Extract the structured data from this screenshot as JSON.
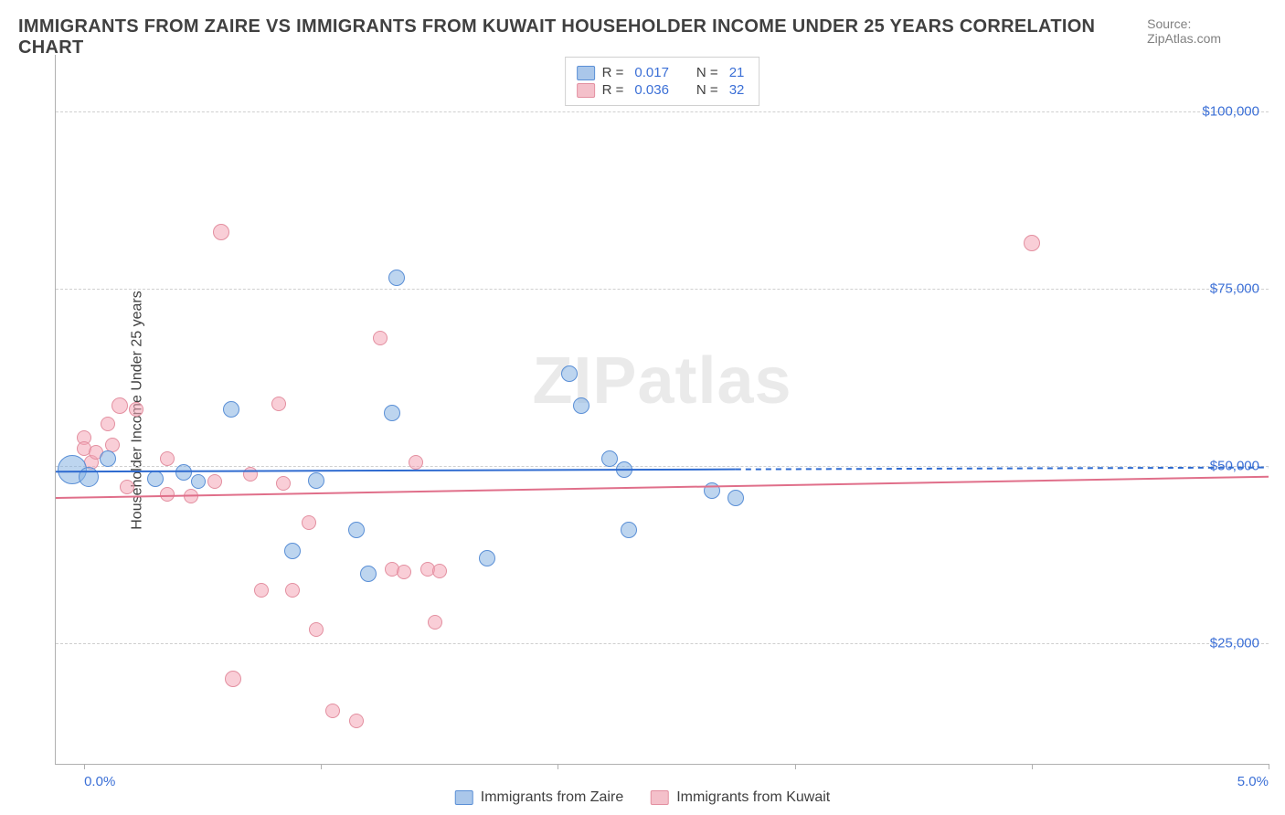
{
  "title": "IMMIGRANTS FROM ZAIRE VS IMMIGRANTS FROM KUWAIT HOUSEHOLDER INCOME UNDER 25 YEARS CORRELATION CHART",
  "source_label": "Source: ZipAtlas.com",
  "ylabel": "Householder Income Under 25 years",
  "watermark": "ZIPatlas",
  "chart": {
    "type": "scatter",
    "background_color": "#ffffff",
    "grid_color": "#cfcfcf",
    "axis_color": "#b0b0b0",
    "tick_label_color": "#3b6fd6",
    "xlim": [
      -0.12,
      5.0
    ],
    "ylim": [
      8000,
      108000
    ],
    "yticks": [
      25000,
      50000,
      75000,
      100000
    ],
    "ytick_labels": [
      "$25,000",
      "$50,000",
      "$75,000",
      "$100,000"
    ],
    "xticks": [
      0.0,
      1.0,
      2.0,
      3.0,
      4.0,
      5.0
    ],
    "xtick_labels_visible": {
      "0": "0.0%",
      "5": "5.0%"
    },
    "ylabel_fontsize": 16,
    "title_fontsize": 20
  },
  "legend_top": [
    {
      "swatch_fill": "#aac7ea",
      "swatch_stroke": "#5a8fd6",
      "r_label": "R =",
      "r_value": "0.017",
      "n_label": "N =",
      "n_value": "21"
    },
    {
      "swatch_fill": "#f4c0ca",
      "swatch_stroke": "#e38fa0",
      "r_label": "R =",
      "r_value": "0.036",
      "n_label": "N =",
      "n_value": "32"
    }
  ],
  "legend_bottom": [
    {
      "swatch_fill": "#aac7ea",
      "swatch_stroke": "#5a8fd6",
      "label": "Immigrants from Zaire"
    },
    {
      "swatch_fill": "#f4c0ca",
      "swatch_stroke": "#e38fa0",
      "label": "Immigrants from Kuwait"
    }
  ],
  "series": {
    "zaire": {
      "color_fill": "rgba(135,178,226,0.55)",
      "color_stroke": "#5a8fd6",
      "points": [
        {
          "x": -0.05,
          "y": 49500,
          "r": 16
        },
        {
          "x": 0.02,
          "y": 48500,
          "r": 11
        },
        {
          "x": 0.1,
          "y": 51000,
          "r": 9
        },
        {
          "x": 0.3,
          "y": 48200,
          "r": 9
        },
        {
          "x": 0.42,
          "y": 49100,
          "r": 9
        },
        {
          "x": 0.48,
          "y": 47800,
          "r": 8
        },
        {
          "x": 0.62,
          "y": 58000,
          "r": 9
        },
        {
          "x": 0.98,
          "y": 48000,
          "r": 9
        },
        {
          "x": 0.88,
          "y": 38000,
          "r": 9
        },
        {
          "x": 1.15,
          "y": 41000,
          "r": 9
        },
        {
          "x": 1.2,
          "y": 34800,
          "r": 9
        },
        {
          "x": 1.32,
          "y": 76500,
          "r": 9
        },
        {
          "x": 1.3,
          "y": 57500,
          "r": 9
        },
        {
          "x": 1.7,
          "y": 37000,
          "r": 9
        },
        {
          "x": 2.05,
          "y": 63000,
          "r": 9
        },
        {
          "x": 2.1,
          "y": 58500,
          "r": 9
        },
        {
          "x": 2.22,
          "y": 51000,
          "r": 9
        },
        {
          "x": 2.28,
          "y": 49500,
          "r": 9
        },
        {
          "x": 2.3,
          "y": 41000,
          "r": 9
        },
        {
          "x": 2.65,
          "y": 46500,
          "r": 9
        },
        {
          "x": 2.75,
          "y": 45500,
          "r": 9
        }
      ],
      "trend": {
        "y_at_xmin": 49200,
        "y_at_xmax": 49800,
        "stroke": "#2f6bd0",
        "width": 2,
        "dash_after_x": 2.75
      }
    },
    "kuwait": {
      "color_fill": "rgba(244,165,182,0.55)",
      "color_stroke": "#e38fa0",
      "points": [
        {
          "x": 0.0,
          "y": 54000,
          "r": 8
        },
        {
          "x": 0.0,
          "y": 52500,
          "r": 8
        },
        {
          "x": 0.03,
          "y": 50500,
          "r": 8
        },
        {
          "x": 0.05,
          "y": 52000,
          "r": 8
        },
        {
          "x": 0.1,
          "y": 56000,
          "r": 8
        },
        {
          "x": 0.12,
          "y": 53000,
          "r": 8
        },
        {
          "x": 0.15,
          "y": 58500,
          "r": 9
        },
        {
          "x": 0.22,
          "y": 58000,
          "r": 8
        },
        {
          "x": 0.18,
          "y": 47000,
          "r": 8
        },
        {
          "x": 0.35,
          "y": 51000,
          "r": 8
        },
        {
          "x": 0.35,
          "y": 46000,
          "r": 8
        },
        {
          "x": 0.45,
          "y": 45800,
          "r": 8
        },
        {
          "x": 0.55,
          "y": 47800,
          "r": 8
        },
        {
          "x": 0.58,
          "y": 83000,
          "r": 9
        },
        {
          "x": 0.63,
          "y": 20000,
          "r": 9
        },
        {
          "x": 0.7,
          "y": 48800,
          "r": 8
        },
        {
          "x": 0.75,
          "y": 32500,
          "r": 8
        },
        {
          "x": 0.82,
          "y": 58800,
          "r": 8
        },
        {
          "x": 0.84,
          "y": 47500,
          "r": 8
        },
        {
          "x": 0.88,
          "y": 32500,
          "r": 8
        },
        {
          "x": 0.95,
          "y": 42000,
          "r": 8
        },
        {
          "x": 0.98,
          "y": 27000,
          "r": 8
        },
        {
          "x": 1.05,
          "y": 15500,
          "r": 8
        },
        {
          "x": 1.15,
          "y": 14000,
          "r": 8
        },
        {
          "x": 1.25,
          "y": 68000,
          "r": 8
        },
        {
          "x": 1.3,
          "y": 35500,
          "r": 8
        },
        {
          "x": 1.35,
          "y": 35000,
          "r": 8
        },
        {
          "x": 1.4,
          "y": 50500,
          "r": 8
        },
        {
          "x": 1.45,
          "y": 35500,
          "r": 8
        },
        {
          "x": 1.5,
          "y": 35200,
          "r": 8
        },
        {
          "x": 1.48,
          "y": 28000,
          "r": 8
        },
        {
          "x": 4.0,
          "y": 81500,
          "r": 9
        }
      ],
      "trend": {
        "y_at_xmin": 45500,
        "y_at_xmax": 48500,
        "stroke": "#e06f8a",
        "width": 2
      }
    }
  }
}
